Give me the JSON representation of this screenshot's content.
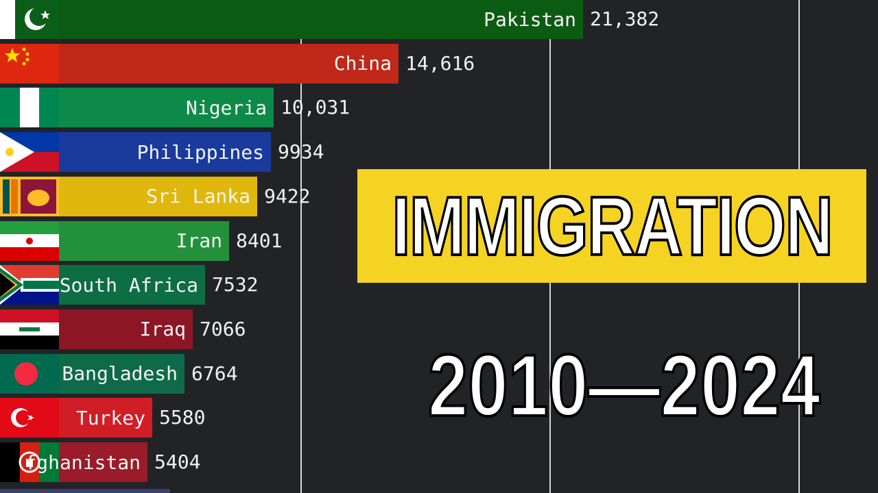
{
  "overlay": {
    "title": "IMMIGRATION",
    "years": "2010—2024"
  },
  "chart_data": {
    "type": "bar",
    "orientation": "horizontal",
    "categories": [
      "Pakistan",
      "China",
      "Nigeria",
      "Philippines",
      "Sri Lanka",
      "Iran",
      "South Africa",
      "Iraq",
      "Bangladesh",
      "Turkey",
      "fghanistan"
    ],
    "values": [
      21382,
      14616,
      10031,
      9934,
      9422,
      8401,
      7532,
      7066,
      6764,
      5580,
      5404
    ],
    "value_labels": [
      "21,382",
      "14,616",
      "10,031",
      "9934",
      "9422",
      "8401",
      "7532",
      "7066",
      "6764",
      "5580",
      "5404"
    ],
    "colors": [
      "#0c5b13",
      "#c0281a",
      "#0d8a47",
      "#1a3a9e",
      "#e0b70d",
      "#23913a",
      "#0d6e43",
      "#8c1624",
      "#0f6a49",
      "#d11d25",
      "#9a1b2a"
    ],
    "flag_icons": [
      "pakistan-flag-icon",
      "china-flag-icon",
      "nigeria-flag-icon",
      "philippines-flag-icon",
      "sri-lanka-flag-icon",
      "iran-flag-icon",
      "south-africa-flag-icon",
      "iraq-flag-icon",
      "bangladesh-flag-icon",
      "turkey-flag-icon",
      "afghanistan-flag-icon"
    ],
    "gridlines_visible": true,
    "grid_color": "#d9d9d9",
    "background": "#222327"
  }
}
